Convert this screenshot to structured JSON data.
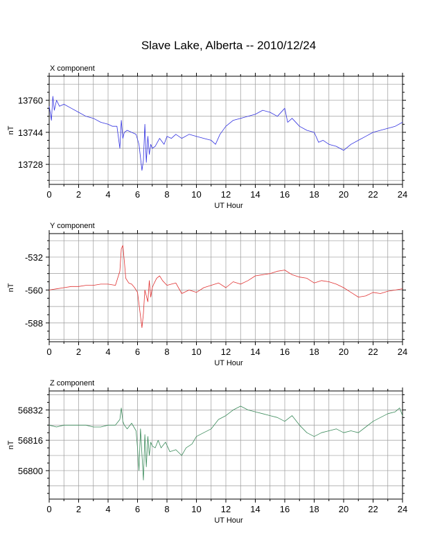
{
  "title": "Slave Lake, Alberta -- 2010/12/24",
  "chart_data": [
    {
      "type": "line",
      "title": "X component",
      "xlabel": "UT Hour",
      "ylabel": "nT",
      "xlim": [
        0,
        24
      ],
      "ylim": [
        13718,
        13772
      ],
      "x_ticks": [
        0,
        2,
        4,
        6,
        8,
        10,
        12,
        14,
        16,
        18,
        20,
        22,
        24
      ],
      "y_ticks": [
        13728,
        13744,
        13760
      ],
      "grid": true,
      "series": [
        {
          "color": "#3030e0",
          "x": [
            0,
            0.15,
            0.25,
            0.35,
            0.5,
            0.7,
            1,
            1.5,
            2,
            2.5,
            3,
            3.5,
            4,
            4.3,
            4.6,
            4.8,
            4.9,
            5,
            5.1,
            5.3,
            5.6,
            5.9,
            6.1,
            6.3,
            6.4,
            6.5,
            6.6,
            6.7,
            6.8,
            6.9,
            7,
            7.2,
            7.5,
            7.8,
            8,
            8.3,
            8.6,
            9,
            9.5,
            10,
            10.5,
            11,
            11.3,
            11.6,
            12,
            12.5,
            13,
            13.5,
            14,
            14.5,
            15,
            15.5,
            16,
            16.2,
            16.5,
            17,
            17.5,
            18,
            18.3,
            18.6,
            19,
            19.5,
            20,
            20.5,
            21,
            21.5,
            22,
            22.5,
            23,
            23.5,
            24
          ],
          "y": [
            13757,
            13750,
            13762,
            13755,
            13760,
            13757,
            13758,
            13756,
            13754,
            13752,
            13751,
            13749,
            13748,
            13747,
            13747,
            13736,
            13750,
            13741,
            13744,
            13745,
            13744,
            13743,
            13738,
            13725,
            13730,
            13748,
            13729,
            13742,
            13733,
            13738,
            13736,
            13737,
            13741,
            13738,
            13742,
            13741,
            13743,
            13741,
            13743,
            13742,
            13741,
            13740,
            13738,
            13743,
            13747,
            13750,
            13751,
            13752,
            13753,
            13755,
            13754,
            13752,
            13756,
            13749,
            13751,
            13747,
            13745,
            13744,
            13739,
            13740,
            13738,
            13737,
            13735,
            13738,
            13740,
            13742,
            13744,
            13745,
            13746,
            13747,
            13749
          ]
        }
      ]
    },
    {
      "type": "line",
      "title": "Y component",
      "xlabel": "UT Hour",
      "ylabel": "nT",
      "xlim": [
        0,
        24
      ],
      "ylim": [
        -604,
        -512
      ],
      "x_ticks": [
        0,
        2,
        4,
        6,
        8,
        10,
        12,
        14,
        16,
        18,
        20,
        22,
        24
      ],
      "y_ticks": [
        -588,
        -560,
        -532
      ],
      "grid": true,
      "series": [
        {
          "color": "#e03030",
          "x": [
            0,
            0.5,
            1,
            1.5,
            2,
            2.5,
            3,
            3.5,
            4,
            4.5,
            4.8,
            4.9,
            5,
            5.1,
            5.2,
            5.4,
            5.6,
            5.8,
            6,
            6.1,
            6.3,
            6.4,
            6.5,
            6.6,
            6.7,
            6.8,
            6.9,
            7,
            7.1,
            7.3,
            7.5,
            7.7,
            8,
            8.3,
            8.6,
            9,
            9.5,
            10,
            10.5,
            11,
            11.5,
            12,
            12.5,
            13,
            13.5,
            14,
            14.5,
            15,
            15.5,
            16,
            16.5,
            17,
            17.5,
            18,
            18.5,
            19,
            19.5,
            20,
            20.5,
            21,
            21.5,
            22,
            22.5,
            23,
            23.5,
            24
          ],
          "y": [
            -560,
            -559,
            -558,
            -557,
            -557,
            -556,
            -556,
            -555,
            -555,
            -556,
            -544,
            -525,
            -522,
            -535,
            -550,
            -554,
            -555,
            -558,
            -562,
            -572,
            -592,
            -580,
            -560,
            -565,
            -570,
            -552,
            -566,
            -558,
            -555,
            -550,
            -548,
            -552,
            -556,
            -555,
            -554,
            -563,
            -560,
            -562,
            -558,
            -556,
            -554,
            -558,
            -553,
            -555,
            -552,
            -548,
            -547,
            -546,
            -544,
            -543,
            -547,
            -549,
            -550,
            -554,
            -552,
            -553,
            -555,
            -558,
            -562,
            -566,
            -565,
            -562,
            -563,
            -561,
            -560,
            -559
          ]
        }
      ]
    },
    {
      "type": "line",
      "title": "Z component",
      "xlabel": "UT Hour",
      "ylabel": "nT",
      "xlim": [
        0,
        24
      ],
      "ylim": [
        56785,
        56842
      ],
      "x_ticks": [
        0,
        2,
        4,
        6,
        8,
        10,
        12,
        14,
        16,
        18,
        20,
        22,
        24
      ],
      "y_ticks": [
        56800,
        56816,
        56832
      ],
      "grid": true,
      "series": [
        {
          "color": "#3a8a5a",
          "x": [
            0,
            0.5,
            1,
            1.5,
            2,
            2.5,
            3,
            3.5,
            4,
            4.5,
            4.8,
            4.9,
            5,
            5.1,
            5.3,
            5.6,
            5.9,
            6,
            6.1,
            6.2,
            6.4,
            6.5,
            6.6,
            6.7,
            6.8,
            6.9,
            7,
            7.2,
            7.4,
            7.6,
            7.9,
            8.2,
            8.6,
            9,
            9.3,
            9.7,
            10,
            10.5,
            11,
            11.5,
            12,
            12.5,
            13,
            13.5,
            14,
            14.5,
            15,
            15.5,
            16,
            16.5,
            17,
            17.5,
            18,
            18.5,
            19,
            19.5,
            20,
            20.5,
            21,
            21.5,
            22,
            22.5,
            23,
            23.5,
            23.8,
            24
          ],
          "y": [
            56824,
            56823,
            56824,
            56824,
            56824,
            56824,
            56823,
            56823,
            56824,
            56824,
            56827,
            56833,
            56826,
            56824,
            56822,
            56825,
            56821,
            56812,
            56800,
            56822,
            56795,
            56819,
            56802,
            56818,
            56808,
            56815,
            56813,
            56812,
            56816,
            56812,
            56815,
            56810,
            56811,
            56808,
            56812,
            56814,
            56818,
            56820,
            56822,
            56827,
            56829,
            56832,
            56834,
            56832,
            56831,
            56830,
            56829,
            56828,
            56826,
            56829,
            56824,
            56820,
            56818,
            56820,
            56821,
            56822,
            56820,
            56821,
            56820,
            56823,
            56826,
            56828,
            56830,
            56831,
            56833,
            56829
          ]
        }
      ]
    }
  ]
}
